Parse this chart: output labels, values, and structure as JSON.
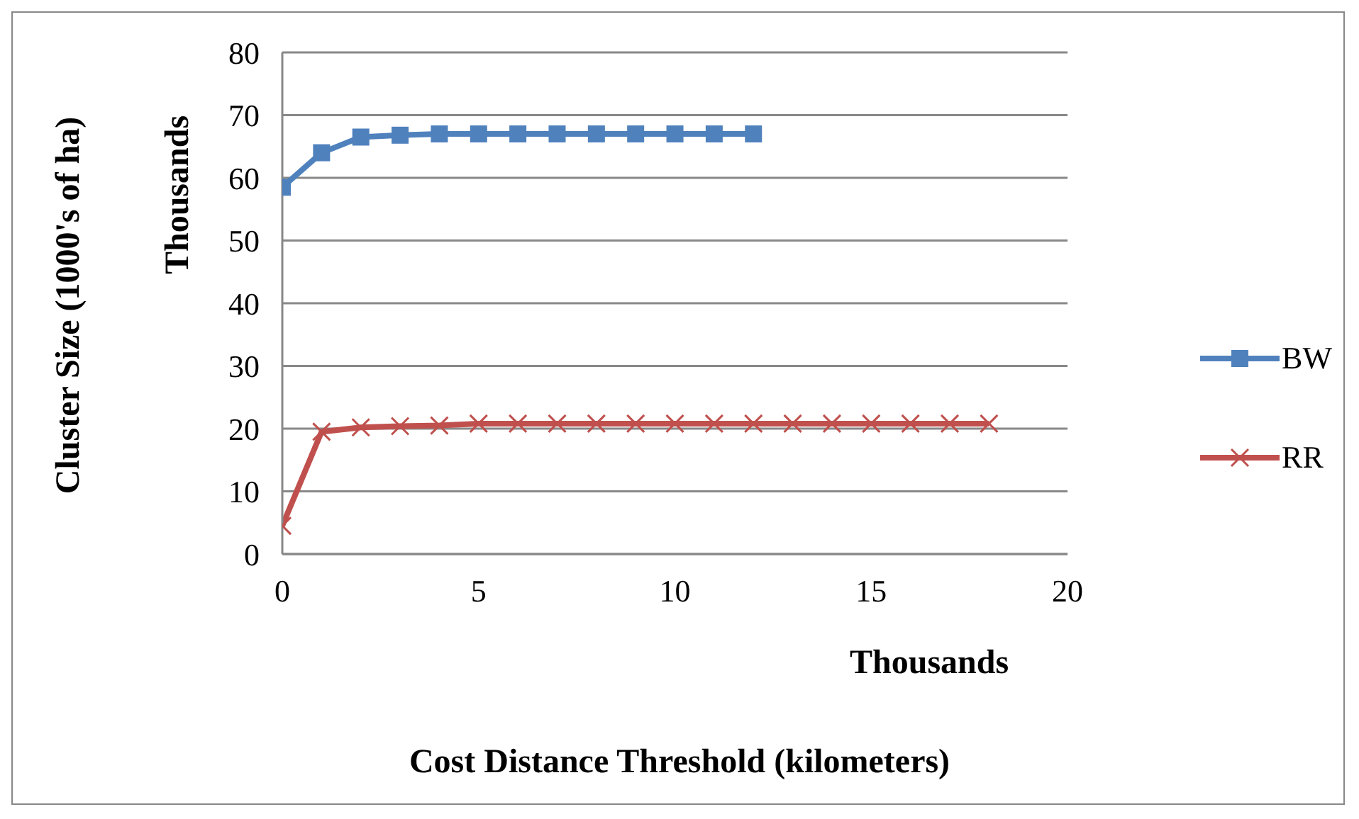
{
  "chart_data": {
    "type": "line",
    "xlabel": "Cost Distance Threshold (kilometers)",
    "ylabel": "Cluster Size (1000's of ha)",
    "annotations": [
      "Thousands",
      "Thousands"
    ],
    "xlim": [
      0,
      20
    ],
    "xticks": [
      0,
      5,
      10,
      15,
      20
    ],
    "ylim": [
      0,
      80
    ],
    "yticks": [
      0,
      10,
      20,
      30,
      40,
      50,
      60,
      70,
      80
    ],
    "grid": "y",
    "legend": "right",
    "series": [
      {
        "name": "BW",
        "color": "#4f81bd",
        "marker": "square",
        "x": [
          0,
          1,
          2,
          3,
          4,
          5,
          6,
          7,
          8,
          9,
          10,
          11,
          12
        ],
        "values": [
          58.5,
          64,
          66.5,
          66.8,
          67,
          67,
          67,
          67,
          67,
          67,
          67,
          67,
          67
        ]
      },
      {
        "name": "RR",
        "color": "#c0504d",
        "marker": "cross",
        "x": [
          0,
          1,
          2,
          3,
          4,
          5,
          6,
          7,
          8,
          9,
          10,
          11,
          12,
          13,
          14,
          15,
          16,
          17,
          18
        ],
        "values": [
          4.5,
          19.5,
          20.2,
          20.4,
          20.5,
          20.8,
          20.8,
          20.8,
          20.8,
          20.8,
          20.8,
          20.8,
          20.8,
          20.8,
          20.8,
          20.8,
          20.8,
          20.8,
          20.8
        ]
      }
    ]
  }
}
